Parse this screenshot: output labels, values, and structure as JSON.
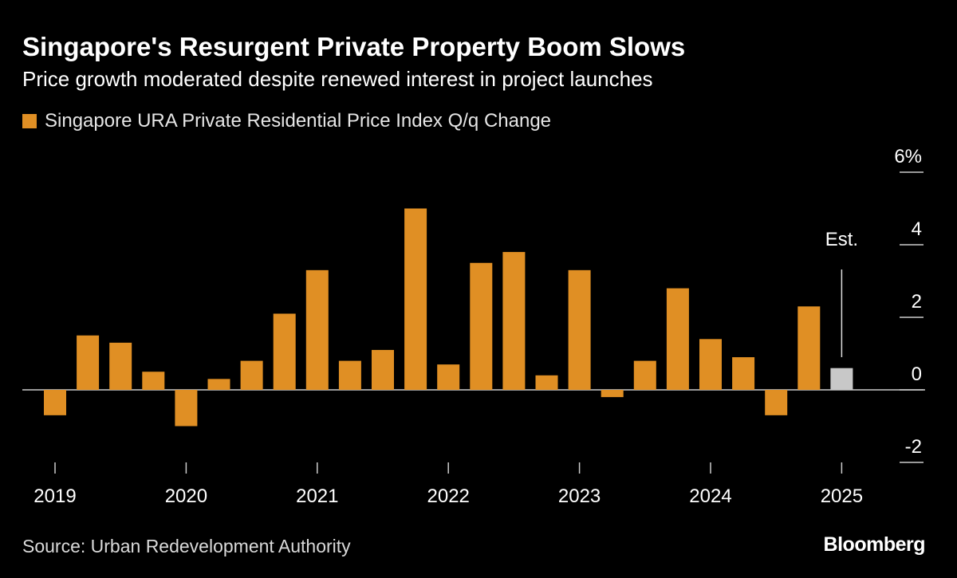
{
  "header": {
    "title": "Singapore's Resurgent Private Property Boom Slows",
    "subtitle": "Price growth moderated despite renewed interest in project launches"
  },
  "footer": {
    "source": "Source: Urban Redevelopment Authority",
    "logo": "Bloomberg"
  },
  "colors": {
    "background": "#000000",
    "bar": "#e08f24",
    "estimate_bar": "#c8c8c8",
    "text": "#ffffff",
    "axis": "#cccccc"
  },
  "chart_data": {
    "type": "bar",
    "title": "Singapore's Resurgent Private Property Boom Slows",
    "subtitle": "Price growth moderated despite renewed interest in project launches",
    "legend": [
      "Singapore URA Private Residential Price Index Q/q Change"
    ],
    "legend_position": "top-left",
    "y_axis_position": "right",
    "ylim": [
      -2,
      6
    ],
    "yticks": [
      6,
      4,
      2,
      0,
      -2
    ],
    "ytick_labels": [
      "6%",
      "4",
      "2",
      "0",
      "-2"
    ],
    "grid": false,
    "xtick_labels": [
      "2019",
      "2020",
      "2021",
      "2022",
      "2023",
      "2024",
      "2025"
    ],
    "categories": [
      "2019 Q1",
      "2019 Q2",
      "2019 Q3",
      "2019 Q4",
      "2020 Q1",
      "2020 Q2",
      "2020 Q3",
      "2020 Q4",
      "2021 Q1",
      "2021 Q2",
      "2021 Q3",
      "2021 Q4",
      "2022 Q1",
      "2022 Q2",
      "2022 Q3",
      "2022 Q4",
      "2023 Q1",
      "2023 Q2",
      "2023 Q3",
      "2023 Q4",
      "2024 Q1",
      "2024 Q2",
      "2024 Q3",
      "2024 Q4",
      "2025 Q1"
    ],
    "values": [
      -0.7,
      1.5,
      1.3,
      0.5,
      -1.0,
      0.3,
      0.8,
      2.1,
      3.3,
      0.8,
      1.1,
      5.0,
      0.7,
      3.5,
      3.8,
      0.4,
      3.3,
      -0.2,
      0.8,
      2.8,
      1.4,
      0.9,
      -0.7,
      2.3,
      0.6
    ],
    "estimate_index": 24,
    "annotation": "Est."
  }
}
